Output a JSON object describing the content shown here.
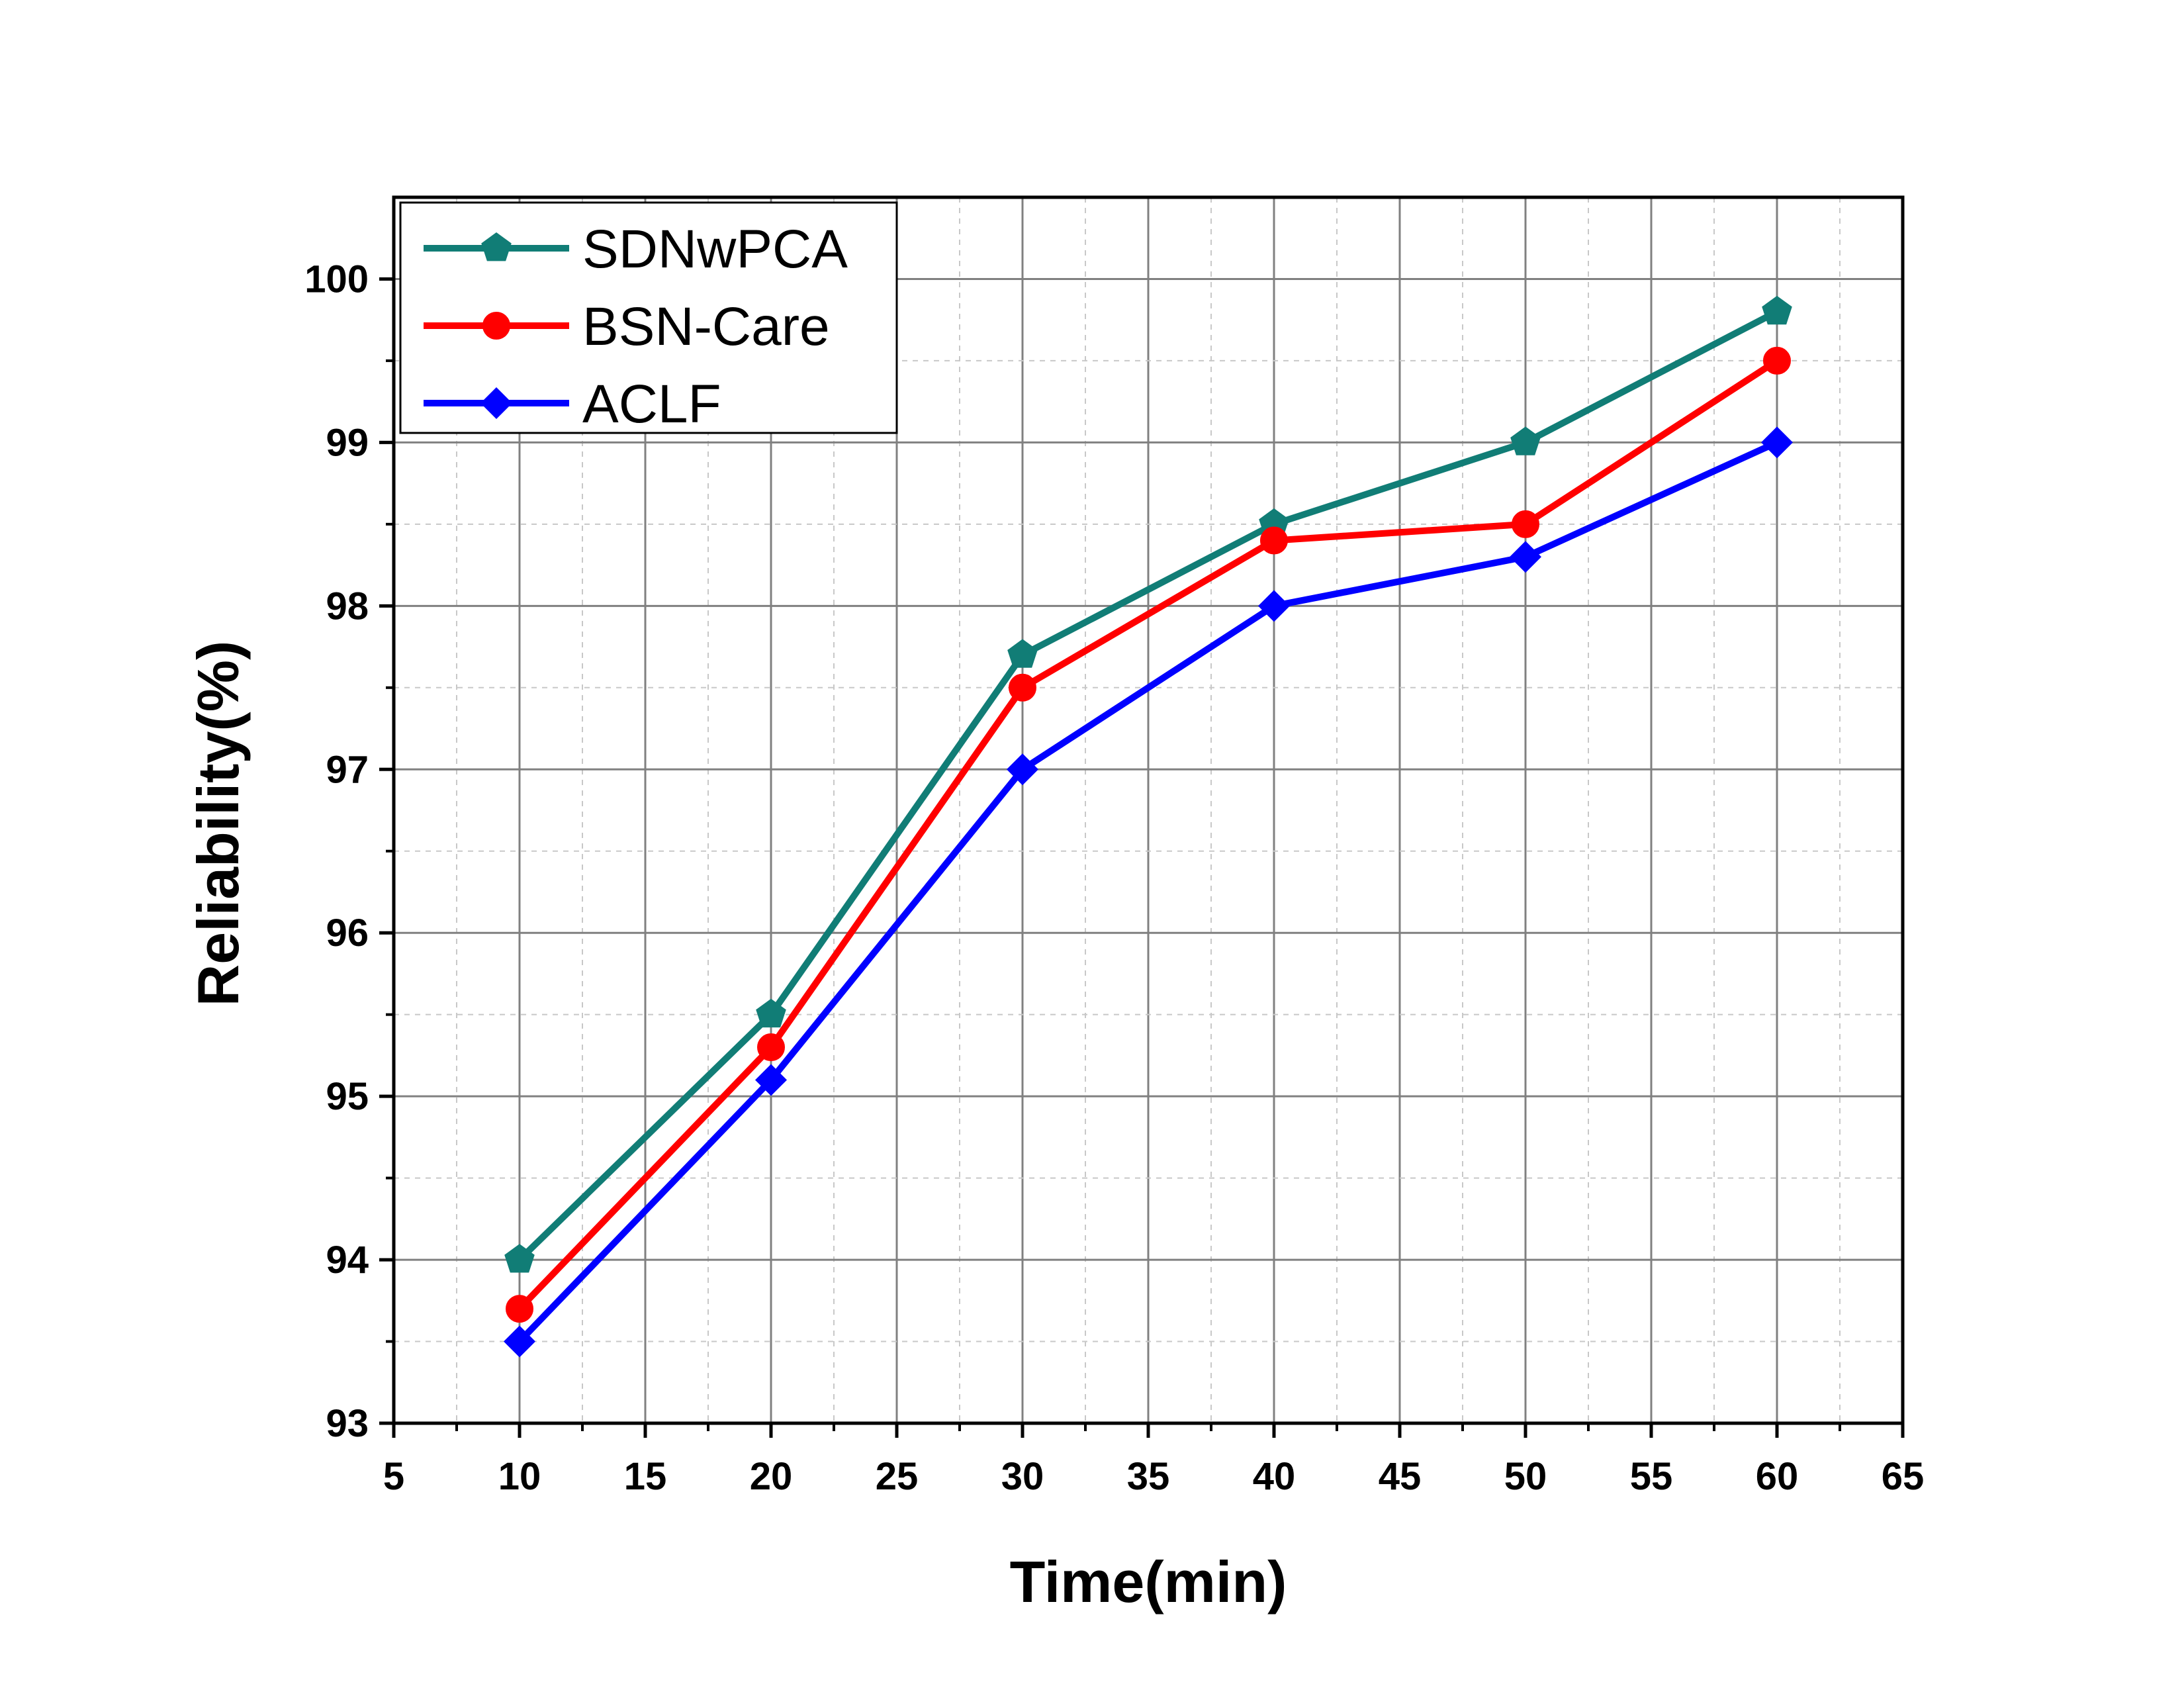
{
  "chart_data": {
    "type": "line",
    "title": "",
    "xlabel": "Time(min)",
    "ylabel": "Reliability(%)",
    "xlim": [
      5,
      65
    ],
    "ylim": [
      93,
      100.5
    ],
    "x_ticks": [
      "5",
      "10",
      "15",
      "20",
      "25",
      "30",
      "35",
      "40",
      "45",
      "50",
      "55",
      "60",
      "65"
    ],
    "y_ticks": [
      "93",
      "94",
      "95",
      "96",
      "97",
      "98",
      "99",
      "100"
    ],
    "grid": true,
    "legend_position": "top-left",
    "x": [
      10,
      20,
      30,
      40,
      50,
      60
    ],
    "series": [
      {
        "name": "SDNwPCA",
        "color": "#117D76",
        "marker": "pentagon",
        "values": [
          94.0,
          95.5,
          97.7,
          98.5,
          99.0,
          99.8
        ]
      },
      {
        "name": "BSN-Care",
        "color": "#FF0000",
        "marker": "circle",
        "values": [
          93.7,
          95.3,
          97.5,
          98.4,
          98.5,
          99.5
        ]
      },
      {
        "name": "ACLF",
        "color": "#0000FF",
        "marker": "diamond",
        "values": [
          93.5,
          95.1,
          97.0,
          98.0,
          98.3,
          99.0
        ]
      }
    ]
  }
}
